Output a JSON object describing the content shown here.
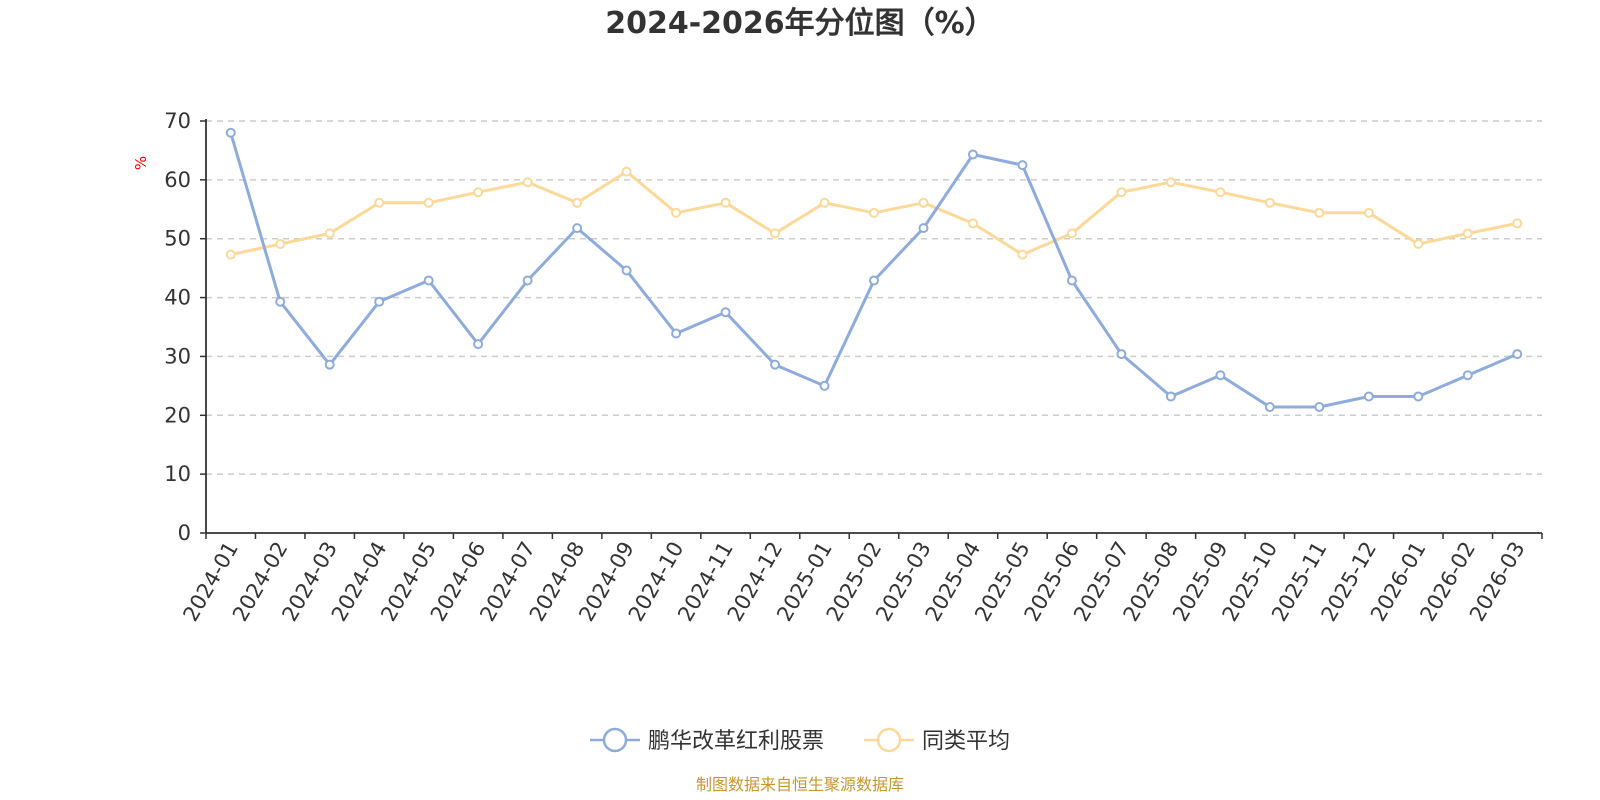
{
  "chart_data": {
    "type": "line",
    "title": "2024-2026年分位图（%）",
    "ylabel": "%",
    "ylim": [
      0,
      70
    ],
    "yticks": [
      0,
      10,
      20,
      30,
      40,
      50,
      60,
      70
    ],
    "grid": true,
    "legend_position": "bottom-center",
    "categories": [
      "2024-01",
      "2024-02",
      "2024-03",
      "2024-04",
      "2024-05",
      "2024-06",
      "2024-07",
      "2024-08",
      "2024-09",
      "2024-10",
      "2024-11",
      "2024-12",
      "2025-01",
      "2025-02",
      "2025-03",
      "2025-04",
      "2025-05",
      "2025-06",
      "2025-07",
      "2025-08",
      "2025-09",
      "2025-10",
      "2025-11",
      "2025-12",
      "2026-01",
      "2026-02",
      "2026-03"
    ],
    "series": [
      {
        "name": "鹏华改革红利股票",
        "color": "#8eacdb",
        "values": [
          68.0,
          39.3,
          28.6,
          39.3,
          42.9,
          32.1,
          42.9,
          51.8,
          44.6,
          33.9,
          37.5,
          28.6,
          25.0,
          42.9,
          51.8,
          64.3,
          62.5,
          42.9,
          30.4,
          23.2,
          26.8,
          21.4,
          21.4,
          23.2,
          23.2,
          26.8,
          30.4
        ]
      },
      {
        "name": "同类平均",
        "color": "#fcd899",
        "values": [
          47.3,
          49.1,
          50.9,
          56.1,
          56.1,
          57.9,
          59.6,
          56.1,
          61.4,
          54.4,
          56.1,
          50.9,
          56.1,
          54.4,
          56.1,
          52.6,
          47.3,
          50.9,
          57.9,
          59.6,
          57.9,
          56.1,
          54.4,
          54.4,
          49.1,
          50.9,
          52.6
        ]
      }
    ],
    "source": "制图数据来自恒生聚源数据库",
    "colors": {
      "axis": "#333333",
      "grid": "#cccccc",
      "unit": "#ff0000",
      "source": "#c8962d"
    }
  }
}
